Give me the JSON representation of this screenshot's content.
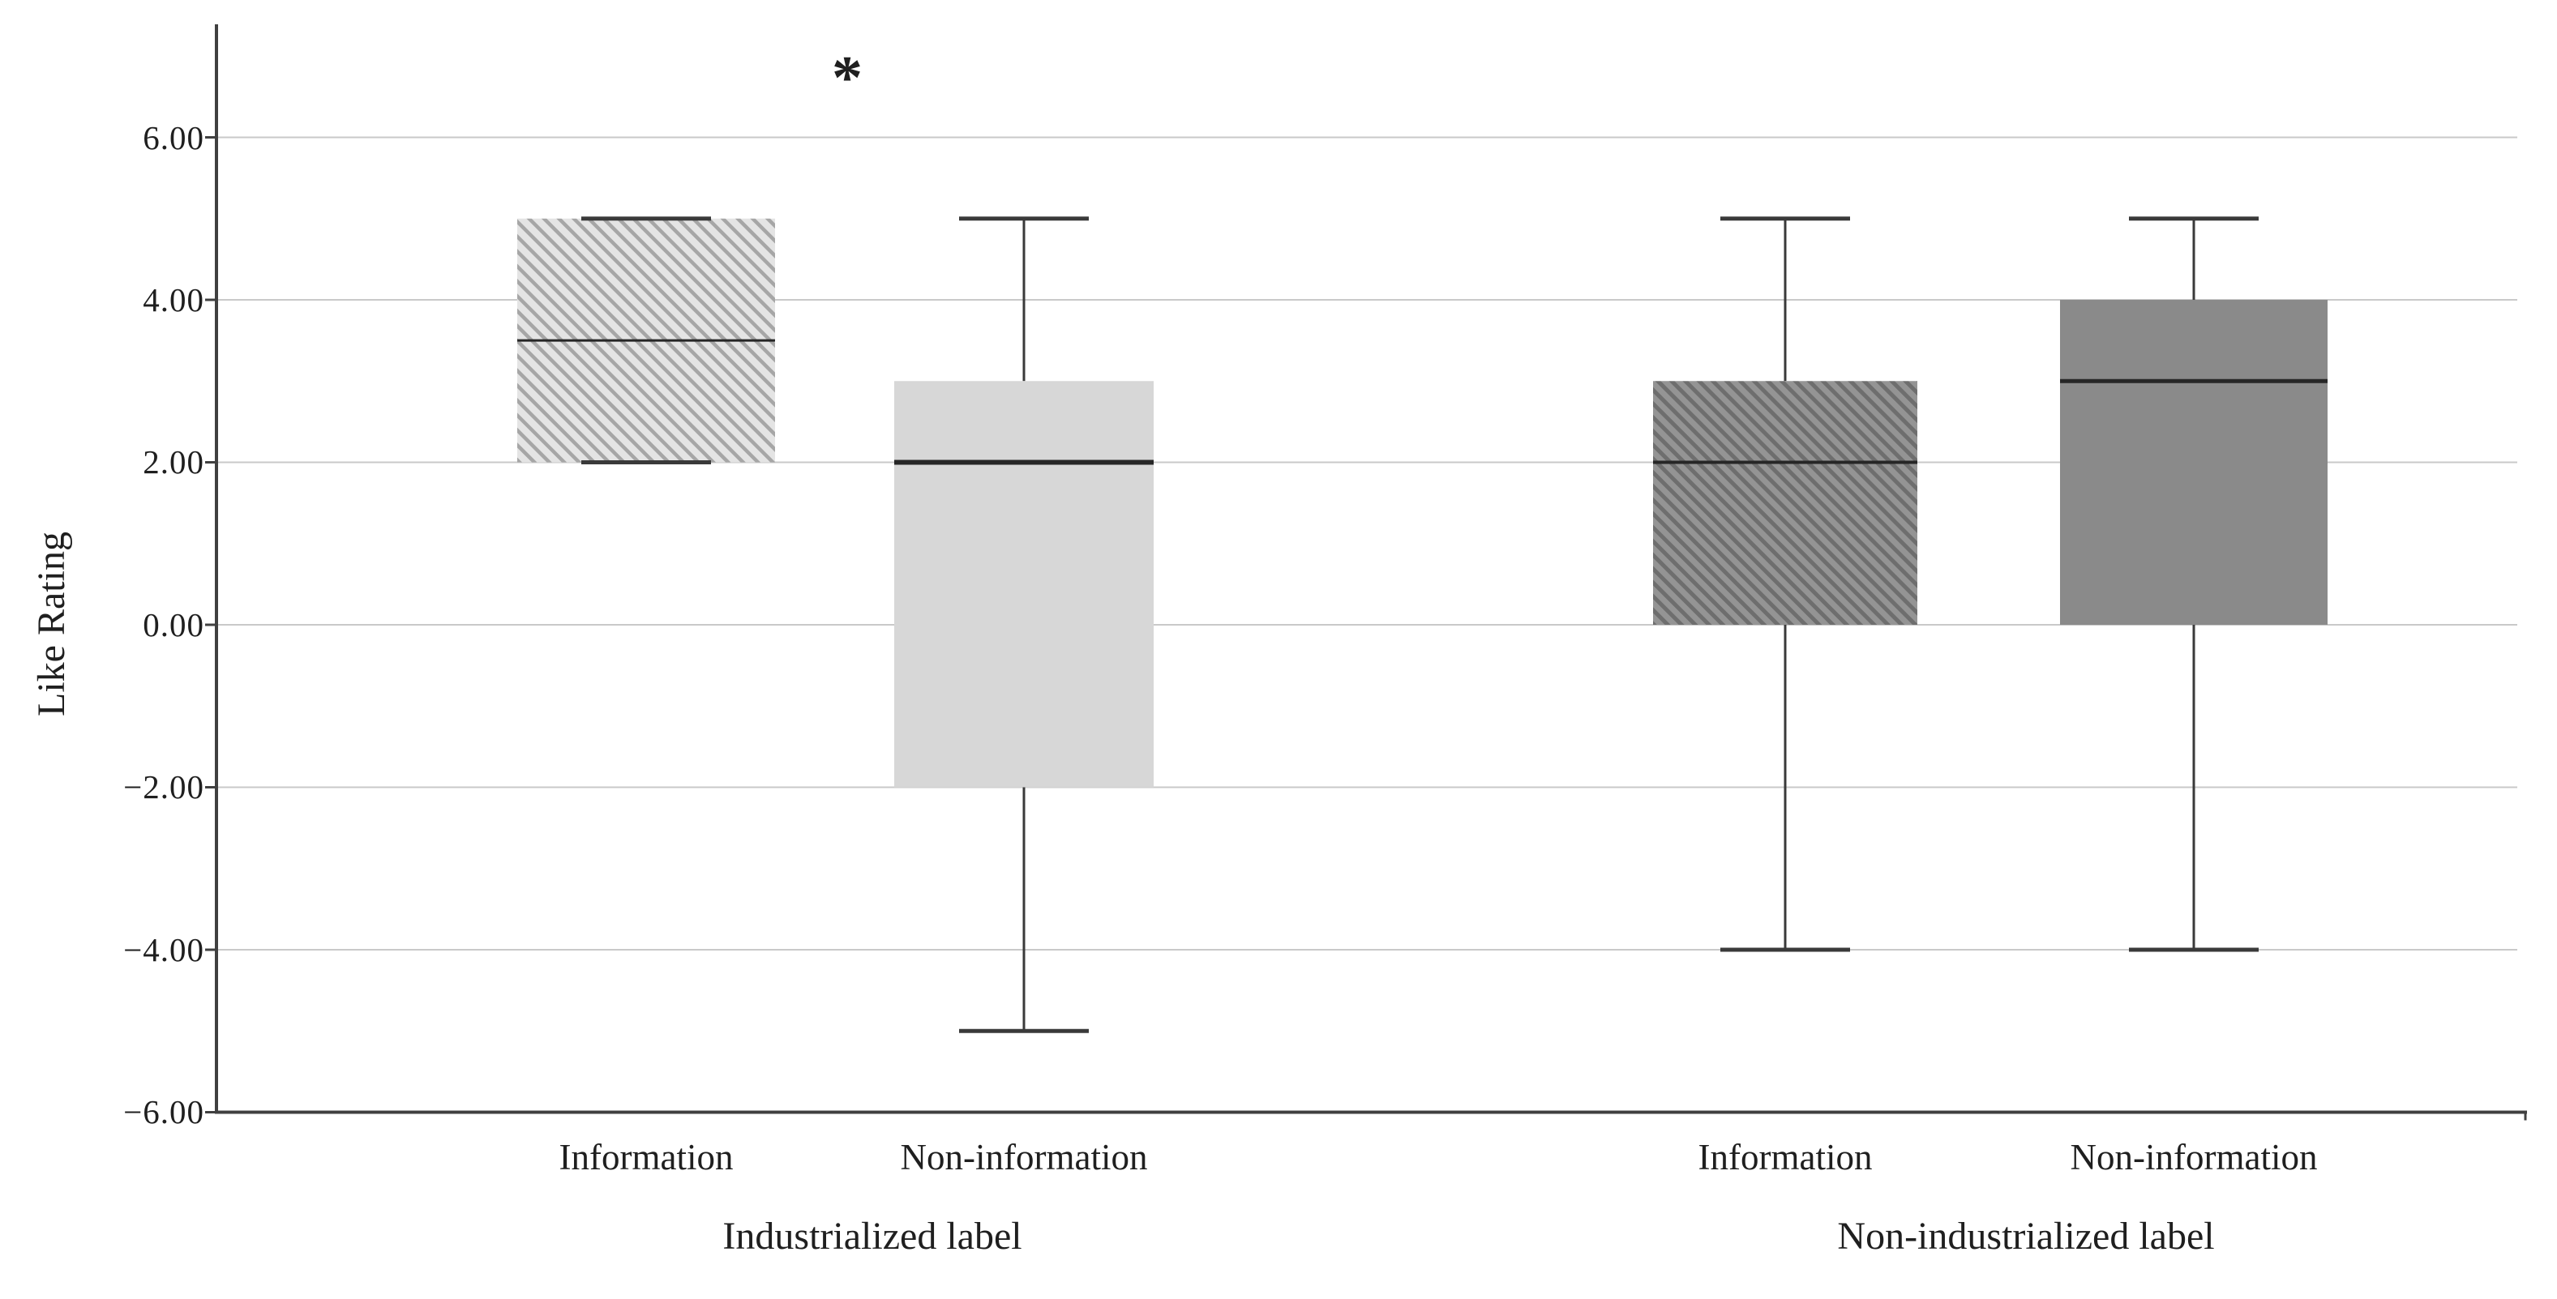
{
  "figure": {
    "background": "#ffffff"
  },
  "chart_data": {
    "type": "boxplot",
    "title": "",
    "xlabel": "",
    "ylabel": "Like Rating",
    "ylim": [
      -6,
      7.4
    ],
    "grid": "horizontal",
    "legend": "none",
    "yticks": [
      6,
      4,
      2,
      0,
      -2,
      -4,
      -6
    ],
    "ytick_labels": [
      "6.00",
      "4.00",
      "2.00",
      "0.00",
      "−2.00",
      "−4.00",
      "−6.00"
    ],
    "groups": [
      {
        "label": "Industrialized label",
        "boxes": [
          {
            "label": "Information",
            "style": "light-hatched",
            "median": 3.5,
            "q1": 2,
            "q3": 5,
            "whisker_low": 2,
            "whisker_high": 5
          },
          {
            "label": "Non-information",
            "style": "light-solid",
            "median": 2,
            "q1": -2,
            "q3": 3,
            "whisker_low": -5,
            "whisker_high": 5
          }
        ]
      },
      {
        "label": "Non-industrialized label",
        "boxes": [
          {
            "label": "Information",
            "style": "dark-hatched",
            "median": 2,
            "q1": 0,
            "q3": 3,
            "whisker_low": -4,
            "whisker_high": 5
          },
          {
            "label": "Non-information",
            "style": "dark-solid",
            "median": 3,
            "q1": 0,
            "q3": 4,
            "whisker_low": -4,
            "whisker_high": 5
          }
        ]
      }
    ],
    "annotations": [
      {
        "text": "*",
        "group_index": 0
      }
    ],
    "colors": {
      "light_hatch_bg": "#e4e4e4",
      "light_hatch_line": "#a6a6a6",
      "light_solid": "#d7d7d7",
      "dark_hatch_bg": "#949494",
      "dark_hatch_line": "#6e6e6e",
      "dark_solid": "#8a8a8a",
      "whisker": "#3a3a3a",
      "median": "#262626",
      "grid": "#c9c9c9",
      "axis": "#404040",
      "text": "#1f1f1f"
    }
  }
}
